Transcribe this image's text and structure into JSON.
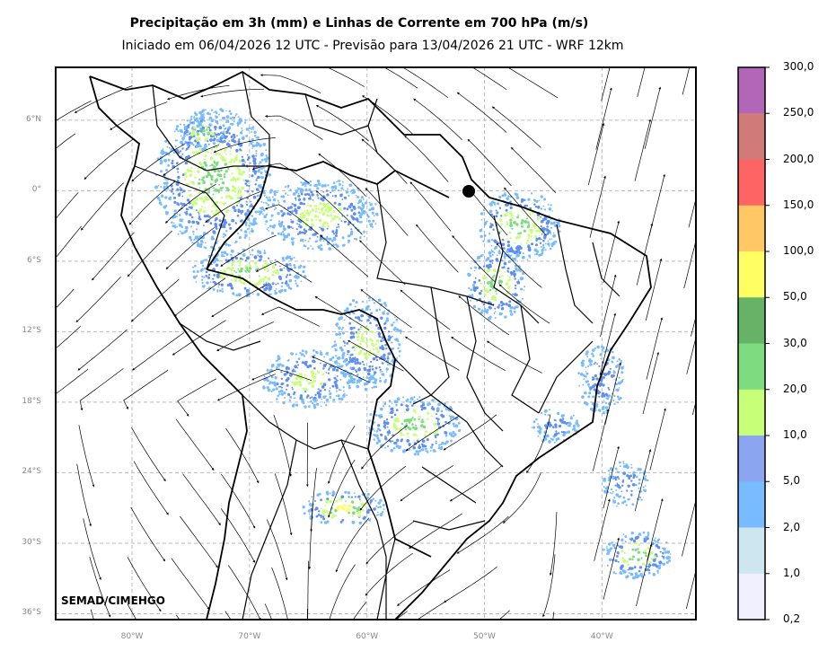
{
  "header": {
    "title": "Precipitação em 3h (mm) e Linhas de Corrente em 700 hPa (m/s)",
    "subtitle": "Iniciado em 06/04/2026 12 UTC - Previsão para 13/04/2026 21 UTC - WRF 12km"
  },
  "credit": "SEMAD/CIMEHGO",
  "axes": {
    "lat_ticks": [
      "6°N",
      "0°",
      "6°S",
      "12°S",
      "18°S",
      "24°S",
      "30°S",
      "36°S"
    ],
    "lon_ticks": [
      "80°W",
      "70°W",
      "60°W",
      "50°W",
      "40°W"
    ],
    "lat_values": [
      6,
      0,
      -6,
      -12,
      -18,
      -24,
      -30,
      -36
    ],
    "lon_values": [
      -80,
      -70,
      -60,
      -50,
      -40
    ],
    "lat_range": [
      -36.5,
      10.5
    ],
    "lon_range": [
      -86.5,
      -32
    ]
  },
  "colorbar": {
    "labels": [
      "300,0",
      "250,0",
      "200,0",
      "150,0",
      "100,0",
      "50,0",
      "30,0",
      "20,0",
      "10,0",
      "5,0",
      "2,0",
      "1,0",
      "0,2"
    ],
    "colors": [
      "#b266b8",
      "#d17a7a",
      "#ff6464",
      "#ffc864",
      "#ffff64",
      "#66b266",
      "#7ddc7d",
      "#c8ff78",
      "#8ca5f0",
      "#78bbff",
      "#cde6f0",
      "#f0f0ff"
    ]
  },
  "rain_areas": [
    {
      "lon": -73,
      "lat": 1,
      "rx": 5,
      "ry": 6,
      "level": 3
    },
    {
      "lon": -70,
      "lat": -7,
      "rx": 5,
      "ry": 2,
      "level": 3
    },
    {
      "lon": -64,
      "lat": -2,
      "rx": 5,
      "ry": 3,
      "level": 2
    },
    {
      "lon": -47,
      "lat": -3,
      "rx": 3.5,
      "ry": 3,
      "level": 3
    },
    {
      "lon": -49,
      "lat": -8,
      "rx": 2.5,
      "ry": 3,
      "level": 3
    },
    {
      "lon": -60,
      "lat": -13,
      "rx": 3,
      "ry": 4,
      "level": 2
    },
    {
      "lon": -56,
      "lat": -20,
      "rx": 4,
      "ry": 2.5,
      "level": 3
    },
    {
      "lon": -62,
      "lat": -27,
      "rx": 3.5,
      "ry": 1.5,
      "level": 4
    },
    {
      "lon": -37,
      "lat": -31,
      "rx": 3,
      "ry": 2,
      "level": 3
    },
    {
      "lon": -65,
      "lat": -16,
      "rx": 4,
      "ry": 2.5,
      "level": 2
    },
    {
      "lon": -74,
      "lat": 5,
      "rx": 2,
      "ry": 1.5,
      "level": 3
    },
    {
      "lon": -40,
      "lat": -16,
      "rx": 2,
      "ry": 3,
      "level": 1
    },
    {
      "lon": -44,
      "lat": -20,
      "rx": 2,
      "ry": 1.5,
      "level": 1
    },
    {
      "lon": -38,
      "lat": -25,
      "rx": 2,
      "ry": 2,
      "level": 1
    }
  ]
}
